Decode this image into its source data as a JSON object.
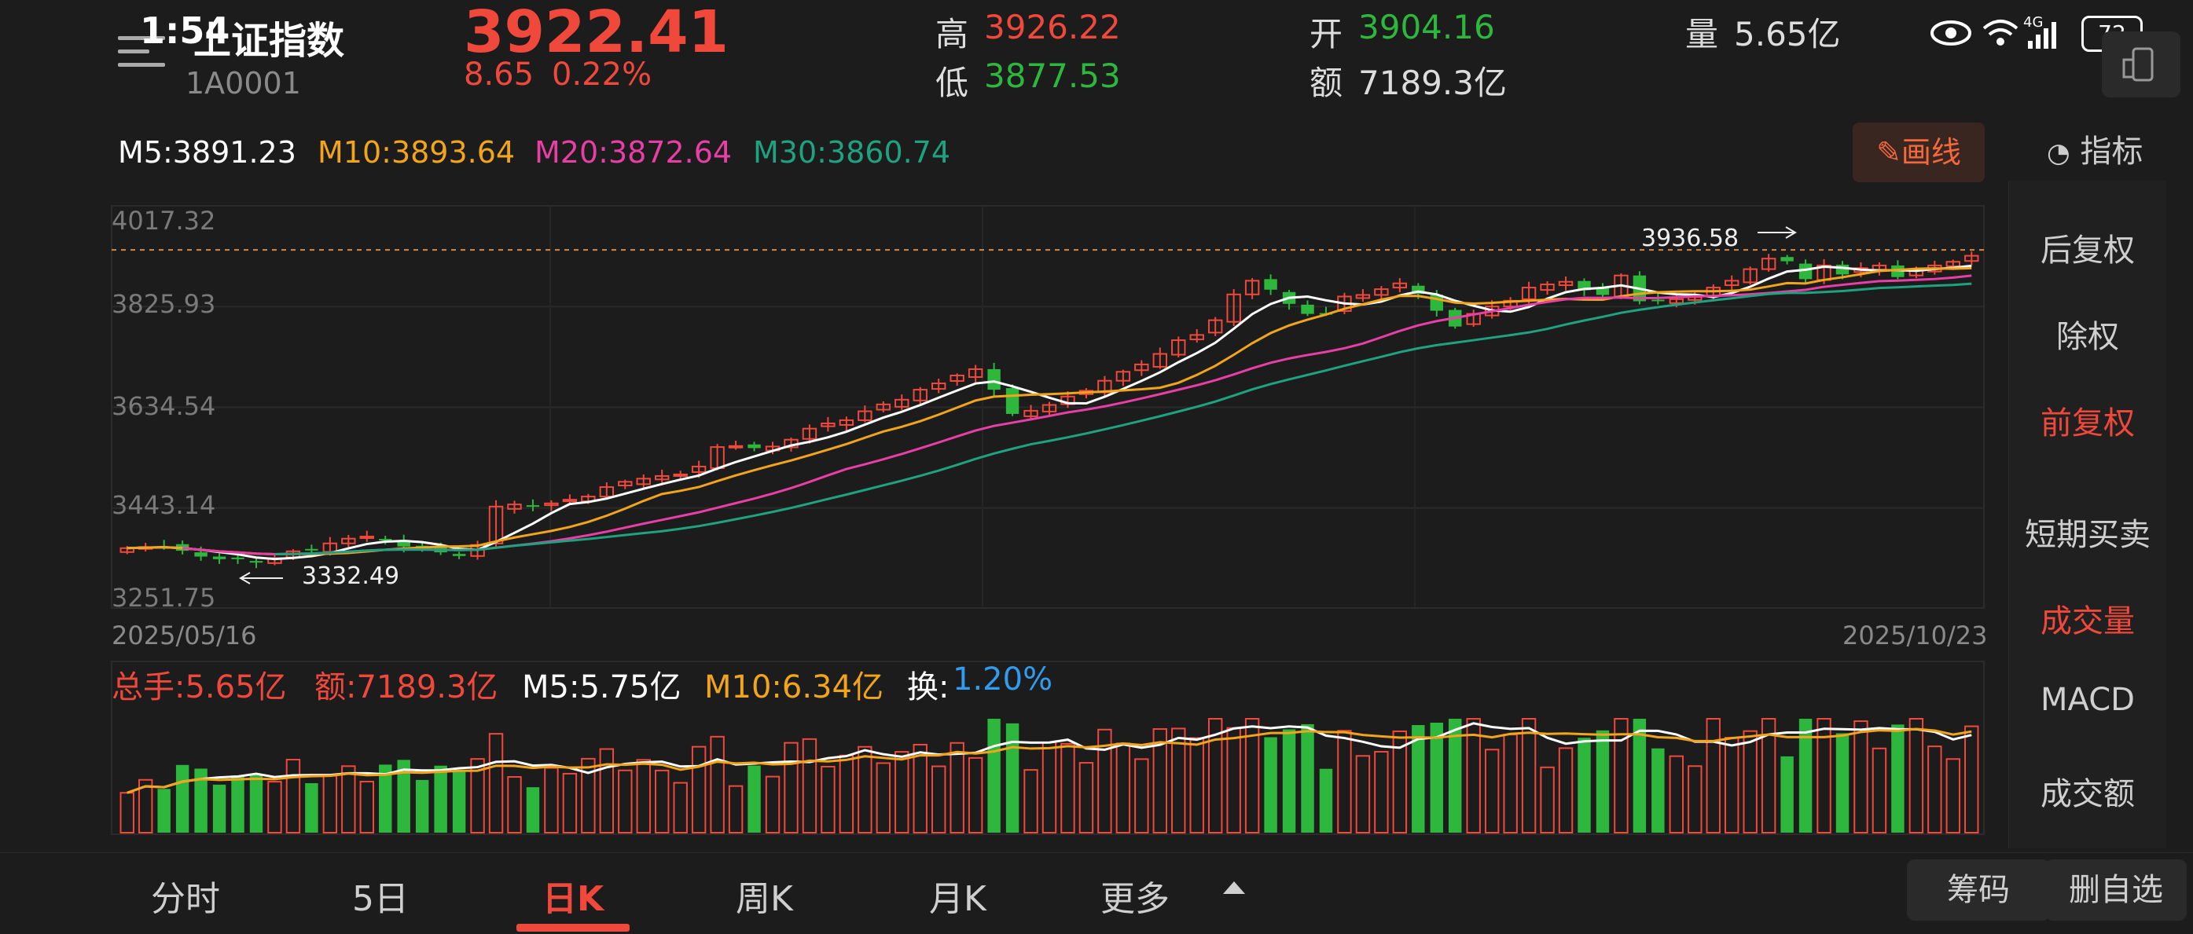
{
  "status": {
    "time": "1:54",
    "battery": "72",
    "network": "4G"
  },
  "header": {
    "index_name": "上证指数",
    "index_code": "1A0001",
    "price": "3922.41",
    "change": "8.65",
    "change_pct": "0.22%",
    "high_label": "高",
    "high_value": "3926.22",
    "low_label": "低",
    "low_value": "3877.53",
    "open_label": "开",
    "open_value": "3904.16",
    "amount_label": "额",
    "amount_value": "7189.3亿",
    "volume_label": "量",
    "volume_value": "5.65亿"
  },
  "indicator_button": "指标",
  "draw_button": "画线",
  "ma_legend": {
    "m5": "M5:3891.23",
    "m10": "M10:3893.64",
    "m20": "M20:3872.64",
    "m30": "M30:3860.74"
  },
  "price_axis": [
    "4017.32",
    "3825.93",
    "3634.54",
    "3443.14",
    "3251.75"
  ],
  "date_start": "2025/05/16",
  "date_end": "2025/10/23",
  "annotations": {
    "high_marker": "3936.58",
    "low_marker": "3332.49"
  },
  "volume_legend": {
    "total": "总手:5.65亿",
    "amount": "额:7189.3亿",
    "m5": "M5:5.75亿",
    "m10": "M10:6.34亿",
    "turnover_label": "换:",
    "turnover_value": "1.20%"
  },
  "sidebar": {
    "items": [
      "后复权",
      "除权",
      "前复权",
      "短期买卖",
      "成交量",
      "MACD",
      "成交额"
    ]
  },
  "bottom_tabs": [
    "分时",
    "5日",
    "日K",
    "周K",
    "月K",
    "更多"
  ],
  "bottom_buttons": [
    "筹码",
    "删自选"
  ],
  "colors": {
    "up": "#f0483b",
    "down": "#2db83d",
    "ma5": "#ffffff",
    "ma10": "#f2a51a",
    "ma20": "#e83fa6",
    "ma30": "#1ea27f",
    "background": "#1c1c1c"
  },
  "chart_data": {
    "type": "candlestick",
    "title": "上证指数",
    "x_range": [
      "2025/05/16",
      "2025/10/23"
    ],
    "ylim": [
      3251.75,
      4017.32
    ],
    "yticks": [
      4017.32,
      3825.93,
      3634.54,
      3443.14,
      3251.75
    ],
    "series_close": [
      3367,
      3369,
      3370,
      3362,
      3351,
      3346,
      3347,
      3340,
      3348,
      3361,
      3363,
      3376,
      3385,
      3389,
      3384,
      3370,
      3364,
      3359,
      3352,
      3373,
      3446,
      3450,
      3447,
      3452,
      3459,
      3465,
      3483,
      3493,
      3499,
      3504,
      3507,
      3522,
      3559,
      3561,
      3557,
      3560,
      3573,
      3594,
      3604,
      3610,
      3627,
      3640,
      3649,
      3668,
      3680,
      3695,
      3707,
      3668,
      3622,
      3628,
      3639,
      3655,
      3666,
      3685,
      3702,
      3716,
      3736,
      3762,
      3772,
      3800,
      3849,
      3875,
      3858,
      3831,
      3812,
      3813,
      3845,
      3848,
      3859,
      3870,
      3850,
      3818,
      3788,
      3812,
      3826,
      3837,
      3862,
      3868,
      3873,
      3857,
      3848,
      3885,
      3836,
      3837,
      3840,
      3844,
      3862,
      3875,
      3897,
      3917,
      3912,
      3878,
      3904,
      3887,
      3899,
      3904,
      3882,
      3897,
      3904,
      3911,
      3922.41
    ],
    "ma_m5_last": 3891.23,
    "ma_m10_last": 3893.64,
    "ma_m20_last": 3872.64,
    "ma_m30_last": 3860.74,
    "period_high": 3936.58,
    "period_low": 3332.49,
    "volume_unit": "亿"
  }
}
